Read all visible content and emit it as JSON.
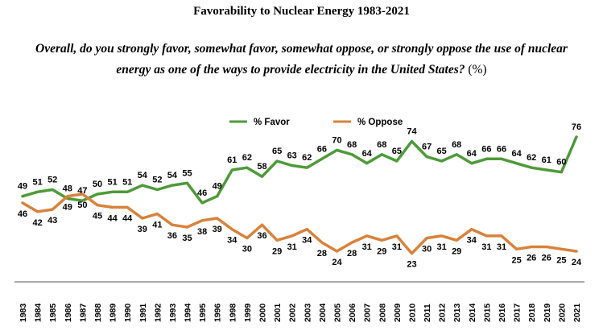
{
  "title_text": "Favorability to Nuclear Energy 1983-2021",
  "question_line1": "Overall, do you strongly favor, somewhat favor, somewhat oppose, or strongly oppose the use of nuclear",
  "question_line2": "energy as one of the ways to provide electricity in the United States?",
  "question_unit": "(%)",
  "colors": {
    "favor": "#4e9a3a",
    "oppose": "#d9823b",
    "axis": "#555555"
  },
  "chart_data": {
    "type": "line",
    "title": "Favorability to Nuclear Energy 1983-2021",
    "x": [
      "1983",
      "1984",
      "1985",
      "1986",
      "1987",
      "1988",
      "1989",
      "1990",
      "1991",
      "1992",
      "1993",
      "1994",
      "1995",
      "1996",
      "1998",
      "1999",
      "2000",
      "2001",
      "2002",
      "2003",
      "2004",
      "2005",
      "2006",
      "2007",
      "2008",
      "2009",
      "2010",
      "2011",
      "2012",
      "2013",
      "2014",
      "2015",
      "2016",
      "2017",
      "2018",
      "2019",
      "2020",
      "2021"
    ],
    "series": [
      {
        "name": "% Favor",
        "values": [
          49,
          51,
          52,
          48,
          47,
          50,
          51,
          51,
          54,
          52,
          54,
          55,
          46,
          49,
          61,
          62,
          58,
          65,
          63,
          62,
          66,
          70,
          68,
          64,
          68,
          65,
          74,
          67,
          65,
          68,
          64,
          66,
          66,
          64,
          62,
          61,
          60,
          76
        ]
      },
      {
        "name": "% Oppose",
        "values": [
          46,
          42,
          43,
          49,
          50,
          45,
          44,
          44,
          39,
          41,
          36,
          35,
          38,
          39,
          34,
          30,
          36,
          29,
          31,
          34,
          28,
          24,
          28,
          31,
          29,
          31,
          23,
          30,
          31,
          29,
          34,
          31,
          31,
          25,
          26,
          26,
          25,
          24
        ]
      }
    ],
    "ylim": [
      15,
      85
    ],
    "grid": false,
    "legend_position": "top-center"
  }
}
